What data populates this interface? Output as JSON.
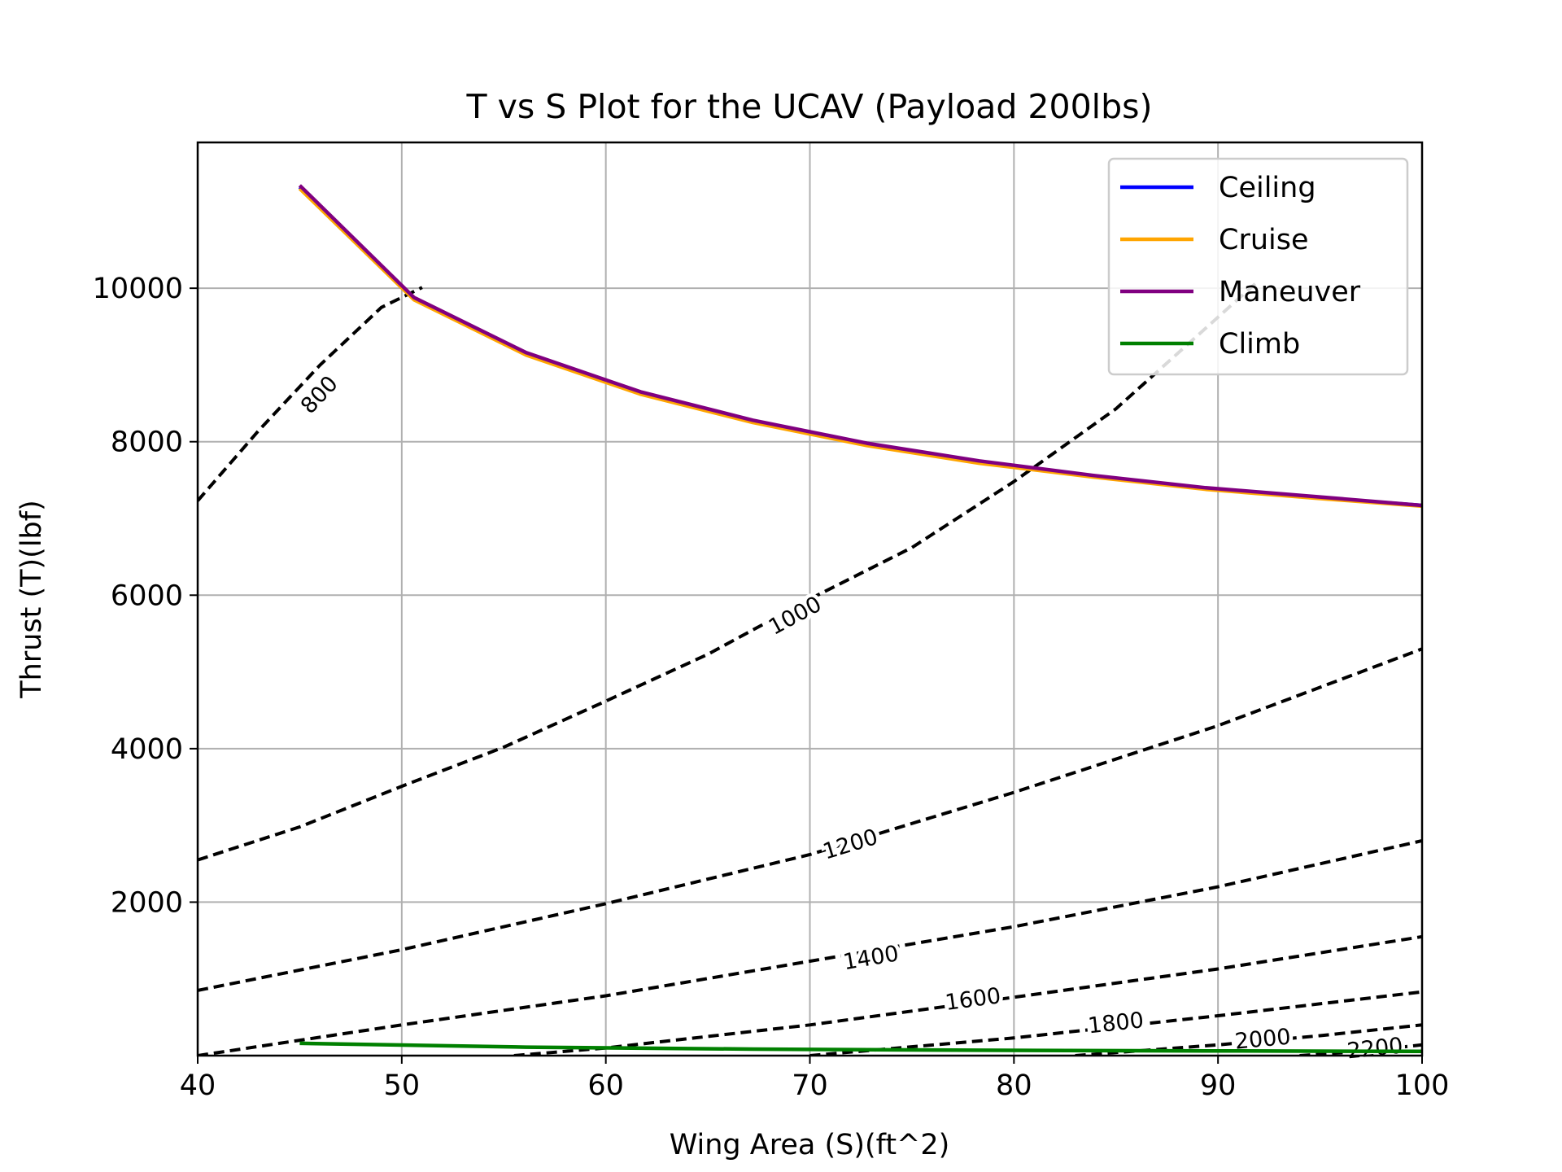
{
  "chart_data": {
    "type": "line",
    "title": "T vs S Plot for the UCAV (Payload 200lbs)",
    "xlabel": "Wing Area (S)(ft^2)",
    "ylabel": "Thrust (T)(lbf)",
    "xlim": [
      40,
      100
    ],
    "ylim": [
      0,
      11900
    ],
    "xticks": [
      40,
      50,
      60,
      70,
      80,
      90,
      100
    ],
    "yticks": [
      2000,
      4000,
      6000,
      8000,
      10000
    ],
    "grid": true,
    "legend_position": "top-right",
    "series": [
      {
        "name": "Ceiling",
        "color": "#0000ff",
        "x": [
          45,
          50.6,
          56.1,
          61.7,
          67.2,
          72.8,
          78.3,
          83.9,
          89.4,
          95,
          100
        ],
        "y": [
          11320,
          9870,
          9150,
          8640,
          8270,
          7970,
          7740,
          7550,
          7390,
          7270,
          7170
        ]
      },
      {
        "name": "Cruise",
        "color": "#ffa500",
        "x": [
          45,
          50.6,
          56.1,
          61.7,
          67.2,
          72.8,
          78.3,
          83.9,
          89.4,
          95,
          100
        ],
        "y": [
          11300,
          9850,
          9130,
          8620,
          8250,
          7950,
          7720,
          7540,
          7380,
          7260,
          7160
        ]
      },
      {
        "name": "Maneuver",
        "color": "#800080",
        "x": [
          45,
          50.6,
          56.1,
          61.7,
          67.2,
          72.8,
          78.3,
          83.9,
          89.4,
          95,
          100
        ],
        "y": [
          11340,
          9880,
          9160,
          8650,
          8280,
          7980,
          7750,
          7560,
          7400,
          7280,
          7170
        ]
      },
      {
        "name": "Climb",
        "color": "#008000",
        "x": [
          45,
          56.1,
          67.2,
          78.3,
          89.4,
          100
        ],
        "y": [
          160,
          110,
          85,
          70,
          62,
          55
        ]
      }
    ],
    "contours": [
      {
        "label": "800",
        "x": [
          40,
          43,
          46,
          49,
          51
        ],
        "y": [
          7230,
          8150,
          9000,
          9750,
          10010
        ],
        "label_x": 46,
        "label_y": 8600
      },
      {
        "label": "1000",
        "x": [
          40,
          45,
          50,
          55,
          60,
          65,
          70,
          75,
          80,
          85,
          92
        ],
        "y": [
          2550,
          2980,
          3510,
          4020,
          4620,
          5230,
          5950,
          6620,
          7480,
          8430,
          10100
        ],
        "label_x": 69.3,
        "label_y": 5720
      },
      {
        "label": "1200",
        "x": [
          40,
          50,
          60,
          70,
          80,
          90,
          100
        ],
        "y": [
          850,
          1380,
          1980,
          2620,
          3430,
          4300,
          5300
        ],
        "label_x": 72,
        "label_y": 2740
      },
      {
        "label": "1400",
        "x": [
          40,
          50,
          60,
          70,
          80,
          90,
          100
        ],
        "y": [
          0,
          400,
          780,
          1230,
          1680,
          2200,
          2800
        ],
        "label_x": 73,
        "label_y": 1260
      },
      {
        "label": "1600",
        "x": [
          55.5,
          60,
          70,
          80,
          90,
          100
        ],
        "y": [
          0,
          100,
          400,
          760,
          1130,
          1550
        ],
        "label_x": 78,
        "label_y": 720
      },
      {
        "label": "1800",
        "x": [
          70,
          80,
          90,
          100
        ],
        "y": [
          0,
          230,
          520,
          830
        ],
        "label_x": 85,
        "label_y": 410
      },
      {
        "label": "2000",
        "x": [
          83,
          90,
          95,
          100
        ],
        "y": [
          0,
          140,
          260,
          400
        ],
        "label_x": 92.2,
        "label_y": 200
      },
      {
        "label": "2200",
        "x": [
          94,
          97,
          100
        ],
        "y": [
          0,
          55,
          140
        ],
        "label_x": 97.7,
        "label_y": 80
      }
    ]
  }
}
